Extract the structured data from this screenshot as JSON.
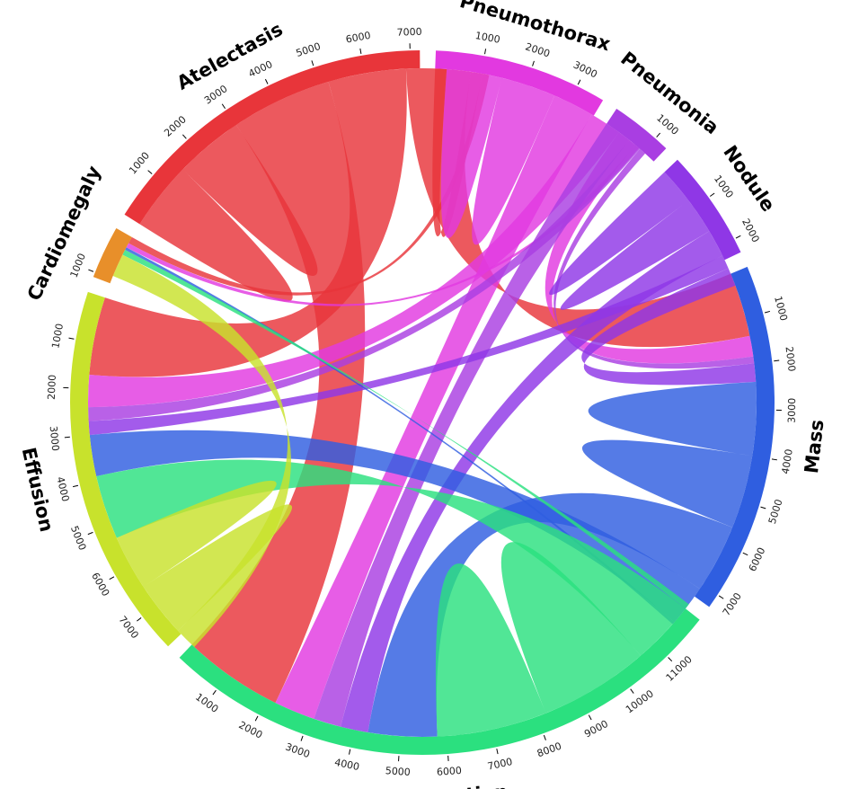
{
  "chart_data": {
    "type": "chord",
    "title": "",
    "tick_step": 1000,
    "categories": [
      {
        "name": "Atelectasis",
        "total": 7200,
        "color": "#e8353a"
      },
      {
        "name": "Pneumothorax",
        "total": 3600,
        "color": "#e239e0"
      },
      {
        "name": "Pneumonia",
        "total": 1300,
        "color": "#a93ee2"
      },
      {
        "name": "Nodule",
        "total": 2300,
        "color": "#8f37e6"
      },
      {
        "name": "Mass",
        "total": 7300,
        "color": "#2f5ee0"
      },
      {
        "name": "Infiltration",
        "total": 12000,
        "color": "#2be07f"
      },
      {
        "name": "Effusion",
        "total": 7800,
        "color": "#c8e22c"
      },
      {
        "name": "Cardiomegaly",
        "total": 1100,
        "color": "#e88f2a"
      }
    ],
    "flows": [
      {
        "source": "Atelectasis",
        "target": "Atelectasis",
        "value": 1500
      },
      {
        "source": "Atelectasis",
        "target": "Infiltration",
        "value": 2200
      },
      {
        "source": "Atelectasis",
        "target": "Effusion",
        "value": 1700
      },
      {
        "source": "Atelectasis",
        "target": "Mass",
        "value": 1400
      },
      {
        "source": "Atelectasis",
        "target": "Pneumothorax",
        "value": 250
      },
      {
        "source": "Atelectasis",
        "target": "Cardiomegaly",
        "value": 150
      },
      {
        "source": "Pneumothorax",
        "target": "Pneumothorax",
        "value": 1200
      },
      {
        "source": "Pneumothorax",
        "target": "Infiltration",
        "value": 900
      },
      {
        "source": "Pneumothorax",
        "target": "Effusion",
        "value": 700
      },
      {
        "source": "Pneumothorax",
        "target": "Mass",
        "value": 450
      },
      {
        "source": "Pneumothorax",
        "target": "Cardiomegaly",
        "value": 100
      },
      {
        "source": "Pneumonia",
        "target": "Infiltration",
        "value": 600
      },
      {
        "source": "Pneumonia",
        "target": "Effusion",
        "value": 300
      },
      {
        "source": "Pneumonia",
        "target": "Mass",
        "value": 150
      },
      {
        "source": "Nodule",
        "target": "Nodule",
        "value": 800
      },
      {
        "source": "Nodule",
        "target": "Infiltration",
        "value": 600
      },
      {
        "source": "Nodule",
        "target": "Effusion",
        "value": 300
      },
      {
        "source": "Nodule",
        "target": "Mass",
        "value": 400
      },
      {
        "source": "Mass",
        "target": "Mass",
        "value": 1600
      },
      {
        "source": "Mass",
        "target": "Infiltration",
        "value": 1500
      },
      {
        "source": "Mass",
        "target": "Effusion",
        "value": 900
      },
      {
        "source": "Mass",
        "target": "Cardiomegaly",
        "value": 60
      },
      {
        "source": "Infiltration",
        "target": "Infiltration",
        "value": 2400
      },
      {
        "source": "Infiltration",
        "target": "Effusion",
        "value": 1400
      },
      {
        "source": "Infiltration",
        "target": "Cardiomegaly",
        "value": 120
      },
      {
        "source": "Effusion",
        "target": "Effusion",
        "value": 1200
      },
      {
        "source": "Effusion",
        "target": "Cardiomegaly",
        "value": 500
      }
    ]
  }
}
